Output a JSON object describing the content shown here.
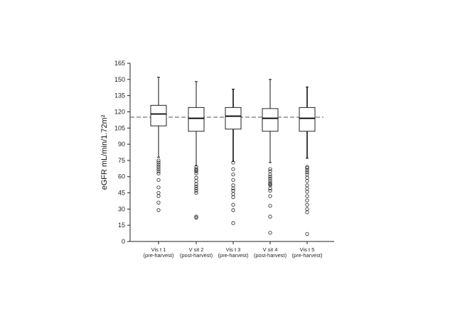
{
  "chart_data": {
    "type": "box",
    "ylabel": "eGFR mL/min/1.72m²",
    "ylim": [
      0,
      165
    ],
    "yticks": [
      "0",
      "15",
      "30",
      "45",
      "60",
      "75",
      "90",
      "105",
      "120",
      "135",
      "150",
      "165"
    ],
    "reference_line": {
      "value": 115,
      "style": "dashed"
    },
    "grid": false,
    "categories": [
      {
        "line1": "Vis t 1",
        "line2": "(pre-harvest)"
      },
      {
        "line1": "V sit 2",
        "line2": "(post-harvest)"
      },
      {
        "line1": "Vis t 3",
        "line2": "(pre-harvest)"
      },
      {
        "line1": "V sit 4",
        "line2": "(post-harvest)"
      },
      {
        "line1": "Vis t 5",
        "line2": "(pre-harvest)"
      }
    ],
    "boxes": [
      {
        "whisker_low": 78,
        "q1": 107,
        "median": 118,
        "q3": 126,
        "whisker_high": 152,
        "outliers": [
          75,
          73,
          71,
          69,
          67,
          65,
          63,
          57,
          50,
          45,
          42,
          36,
          29
        ]
      },
      {
        "whisker_low": 70,
        "q1": 102,
        "median": 114,
        "q3": 124,
        "whisker_high": 148,
        "outliers": [
          69,
          67,
          66,
          65,
          63,
          59,
          56,
          53,
          51,
          49,
          47,
          45,
          23,
          22
        ]
      },
      {
        "whisker_low": 74,
        "q1": 104,
        "median": 116,
        "q3": 124,
        "whisker_high": 141,
        "outliers": [
          73,
          67,
          62,
          57,
          52,
          49,
          47,
          44,
          41,
          34,
          29,
          17
        ]
      },
      {
        "whisker_low": 73,
        "q1": 102,
        "median": 114,
        "q3": 123,
        "whisker_high": 150,
        "outliers": [
          67,
          65,
          62,
          60,
          58,
          56,
          54,
          53,
          52,
          49,
          47,
          42,
          33,
          23,
          8
        ]
      },
      {
        "whisker_low": 77,
        "q1": 102,
        "median": 114,
        "q3": 124,
        "whisker_high": 143,
        "outliers": [
          69,
          68,
          66,
          64,
          62,
          59,
          56,
          52,
          49,
          46,
          42,
          38,
          34,
          30,
          27,
          7
        ]
      }
    ]
  }
}
